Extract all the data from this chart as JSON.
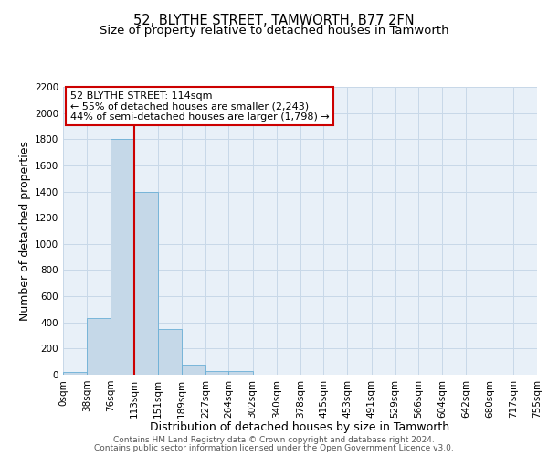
{
  "title": "52, BLYTHE STREET, TAMWORTH, B77 2FN",
  "subtitle": "Size of property relative to detached houses in Tamworth",
  "xlabel": "Distribution of detached houses by size in Tamworth",
  "ylabel": "Number of detached properties",
  "bin_edges": [
    0,
    38,
    76,
    113,
    151,
    189,
    227,
    264,
    302,
    340,
    378,
    415,
    453,
    491,
    529,
    566,
    604,
    642,
    680,
    717,
    755
  ],
  "bin_labels": [
    "0sqm",
    "38sqm",
    "76sqm",
    "113sqm",
    "151sqm",
    "189sqm",
    "227sqm",
    "264sqm",
    "302sqm",
    "340sqm",
    "378sqm",
    "415sqm",
    "453sqm",
    "491sqm",
    "529sqm",
    "566sqm",
    "604sqm",
    "642sqm",
    "680sqm",
    "717sqm",
    "755sqm"
  ],
  "bar_heights": [
    20,
    430,
    1800,
    1400,
    350,
    80,
    25,
    25,
    0,
    0,
    0,
    0,
    0,
    0,
    0,
    0,
    0,
    0,
    0,
    0
  ],
  "bar_color": "#c5d8e8",
  "bar_edgecolor": "#6aafd6",
  "ylim": [
    0,
    2200
  ],
  "yticks": [
    0,
    200,
    400,
    600,
    800,
    1000,
    1200,
    1400,
    1600,
    1800,
    2000,
    2200
  ],
  "vline_x": 114,
  "vline_color": "#cc0000",
  "annotation_title": "52 BLYTHE STREET: 114sqm",
  "annotation_line1": "← 55% of detached houses are smaller (2,243)",
  "annotation_line2": "44% of semi-detached houses are larger (1,798) →",
  "annotation_box_color": "#ffffff",
  "annotation_box_edgecolor": "#cc0000",
  "footer_line1": "Contains HM Land Registry data © Crown copyright and database right 2024.",
  "footer_line2": "Contains public sector information licensed under the Open Government Licence v3.0.",
  "background_color": "#ffffff",
  "plot_bg_color": "#e8f0f8",
  "grid_color": "#c8d8e8",
  "title_fontsize": 10.5,
  "subtitle_fontsize": 9.5,
  "axis_label_fontsize": 9,
  "tick_fontsize": 7.5,
  "annotation_fontsize": 8,
  "footer_fontsize": 6.5
}
